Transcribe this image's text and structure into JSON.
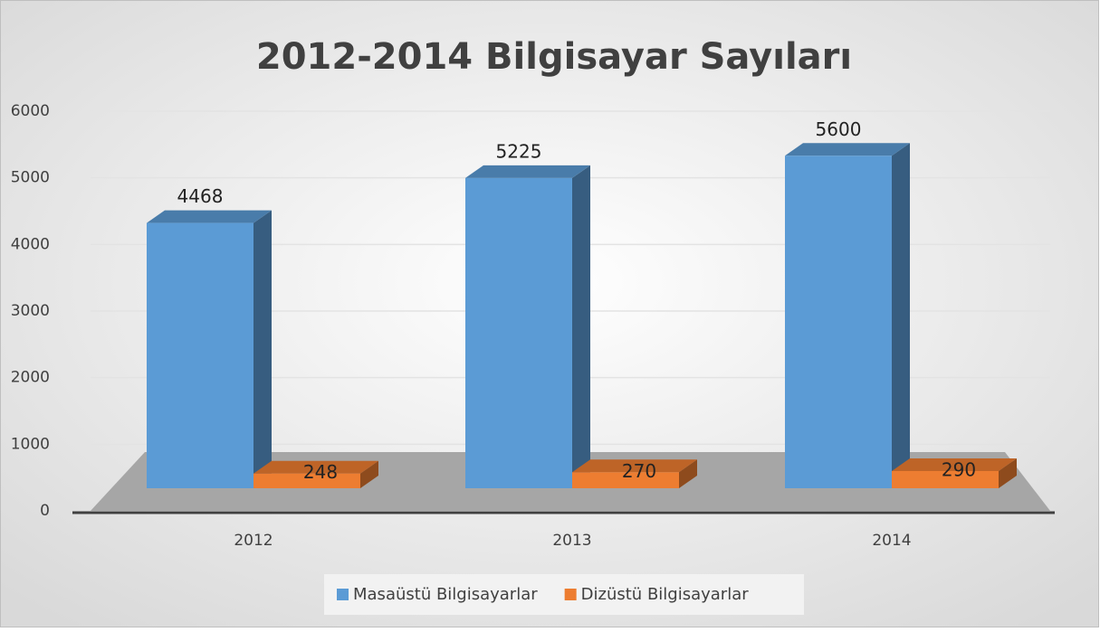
{
  "chart_data": {
    "type": "bar",
    "title": "2012-2014 Bilgisayar Sayıları",
    "categories": [
      "2012",
      "2013",
      "2014"
    ],
    "series": [
      {
        "name": "Masaüstü Bilgisayarlar",
        "color": "#5b9bd5",
        "values": [
          4468,
          5225,
          5600
        ]
      },
      {
        "name": "Dizüstü Bilgisayarlar",
        "color": "#ed7d31",
        "values": [
          248,
          270,
          290
        ]
      }
    ],
    "ylim": [
      0,
      6000
    ],
    "yticks": [
      0,
      1000,
      2000,
      3000,
      4000,
      5000,
      6000
    ],
    "grid": true,
    "legend": "bottom"
  }
}
